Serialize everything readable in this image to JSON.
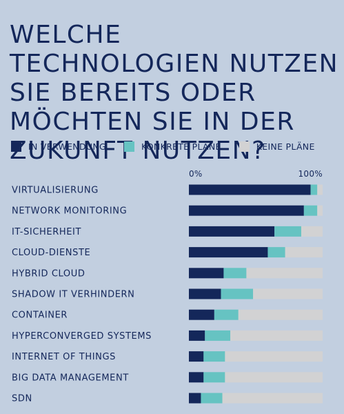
{
  "chart_data": {
    "type": "bar",
    "orientation": "horizontal",
    "stacked": true,
    "title": "WELCHE TECHNOLOGIEN NUTZEN SIE BEREITS ODER MÖCHTEN SIE IN DER ZUKUNFT NUTZEN?",
    "xlim": [
      0,
      100
    ],
    "tick_labels": [
      "0%",
      "100%"
    ],
    "grid": false,
    "legend_position": "top",
    "categories": [
      "VIRTUALISIERUNG",
      "NETWORK MONITORING",
      "IT-SICHERHEIT",
      "CLOUD-DIENSTE",
      "HYBRID CLOUD",
      "SHADOW IT VERHINDERN",
      "CONTAINER",
      "HYPERCONVERGED SYSTEMS",
      "INTERNET OF THINGS",
      "BIG DATA MANAGEMENT",
      "SDN"
    ],
    "series": [
      {
        "name": "IN VERWENDUNG",
        "color": "#14275a",
        "values": [
          91,
          86,
          64,
          59,
          26,
          24,
          19,
          12,
          11,
          11,
          9
        ]
      },
      {
        "name": "KONKRETE PLÄNE",
        "color": "#66c3c2",
        "values": [
          5,
          10,
          20,
          13,
          17,
          24,
          18,
          19,
          16,
          16,
          16
        ]
      },
      {
        "name": "KEINE PLÄNE",
        "color": "#d2d2d3",
        "values": [
          4,
          4,
          16,
          28,
          57,
          52,
          63,
          69,
          73,
          73,
          75
        ]
      }
    ]
  }
}
